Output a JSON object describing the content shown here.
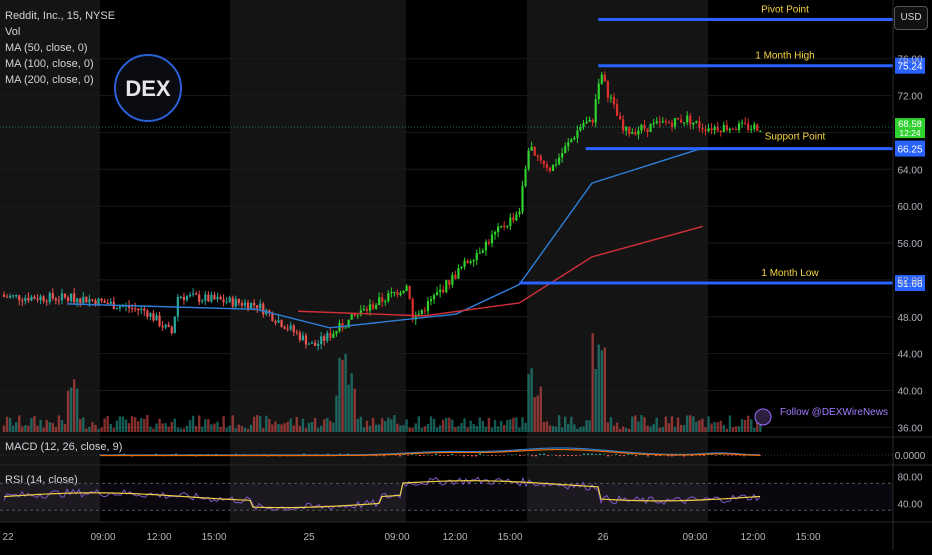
{
  "header": {
    "symbol": "Reddit, Inc., 15, NYSE",
    "indicators": [
      "Vol",
      "MA (50, close, 0)",
      "MA (100, close, 0)",
      "MA (200, close, 0)"
    ],
    "currency_button": "USD"
  },
  "logo_text": "DEX",
  "watermark_text": "Follow @DEXWireNews",
  "colors": {
    "up": "#26a69a",
    "down": "#ef5350",
    "up_bright": "#2ed12e",
    "down_bright": "#e0302c",
    "ma50": "#2f7fd8",
    "ma100": "#d32f3a",
    "level_line": "#2962ff",
    "level_text": "#f5d442",
    "rsi": "#7e57c2",
    "rsi_ma": "#f0d044",
    "macd": "#2f7fd8",
    "signal": "#ef6c00"
  },
  "chart_data": {
    "type": "candlestick",
    "price_axis_ticks": [
      "76.00",
      "72.00",
      "68.00",
      "64.00",
      "60.00",
      "56.00",
      "52.00",
      "48.00",
      "44.00",
      "40.00",
      "36.00"
    ],
    "time_axis_ticks": [
      "22",
      "09:00",
      "12:00",
      "15:00",
      "25",
      "09:00",
      "12:00",
      "15:00",
      "26",
      "09:00",
      "12:00",
      "15:00"
    ],
    "ylim": [
      35.5,
      81.5
    ],
    "last_price": {
      "value": "68.58",
      "countdown": "12:24"
    },
    "levels": [
      {
        "name": "Pivot Point",
        "value": 80.25,
        "label": "80.25",
        "x_from": "12:30 day 26"
      },
      {
        "name": "1 Month High",
        "value": 75.24,
        "label": "75.24",
        "x_from": "09:15 day 26"
      },
      {
        "name": "Support Point",
        "value": 66.25,
        "label": "66.25",
        "x_from": "09:00 day 26"
      },
      {
        "name": "1 Month Low",
        "value": 51.66,
        "label": "51.66",
        "x_from": "15:00 day 25"
      }
    ],
    "price_key_points": [
      [
        "day22 open",
        50.4
      ],
      [
        "day22 09:30",
        50.0
      ],
      [
        "day22 11:30",
        48.6
      ],
      [
        "day22 12:30",
        50.3
      ],
      [
        "day22 15:00",
        49.3
      ],
      [
        "day22 close",
        47.5
      ],
      [
        "day25 open",
        46.2
      ],
      [
        "day25 08:30",
        44.8
      ],
      [
        "day25 10:00",
        48.5
      ],
      [
        "day25 11:30",
        51.5
      ],
      [
        "day25 13:30",
        54.5
      ],
      [
        "day25 15:00",
        59.5
      ],
      [
        "day25 16:00",
        64.0
      ],
      [
        "day25 17:00",
        69.0
      ],
      [
        "day26 07:00",
        66.5
      ],
      [
        "day26 09:00",
        69.0
      ],
      [
        "day26 09:15",
        74.5
      ],
      [
        "day26 10:00",
        68.0
      ],
      [
        "day26 12:00",
        69.5
      ],
      [
        "day26 12:30",
        68.58
      ]
    ],
    "ma50_key_points": [
      [
        "day22 09:00",
        49.4
      ],
      [
        "day22 15:00",
        48.8
      ],
      [
        "day25 09:00",
        46.8
      ],
      [
        "day25 13:00",
        48.3
      ],
      [
        "day25 15:00",
        51.5
      ],
      [
        "day26 09:00",
        62.5
      ],
      [
        "day26 12:30",
        66.3
      ]
    ],
    "ma100_key_points": [
      [
        "day25 08:00",
        48.6
      ],
      [
        "day25 12:00",
        48.1
      ],
      [
        "day25 15:00",
        49.5
      ],
      [
        "day26 09:00",
        54.5
      ],
      [
        "day26 12:30",
        57.8
      ]
    ],
    "macd": {
      "label": "MACD (12, 26, close, 9)",
      "axis_tick": "0.0000"
    },
    "rsi": {
      "label": "RSI (14, close)",
      "axis_ticks": [
        "80.00",
        "40.00"
      ]
    }
  }
}
